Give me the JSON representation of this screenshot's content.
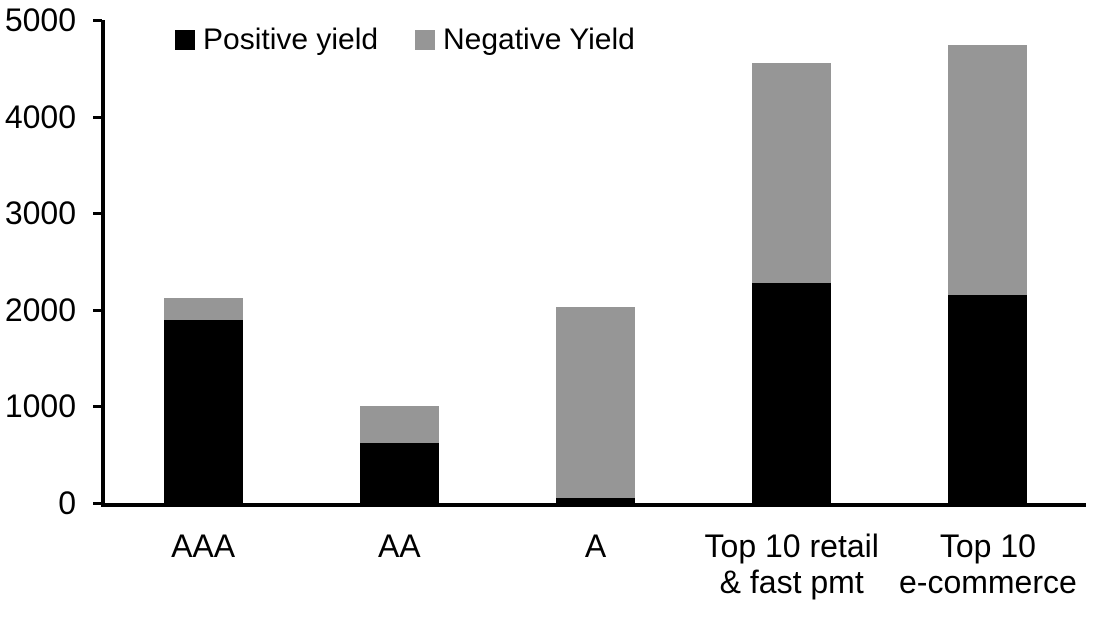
{
  "chart_data": {
    "type": "bar",
    "stacked": true,
    "title": "",
    "xlabel": "",
    "ylabel": "",
    "categories": [
      "AAA",
      "AA",
      "A",
      "Top 10 retail\n& fast pmt",
      "Top 10\ne-commerce"
    ],
    "series": [
      {
        "name": "Positive yield",
        "color": "#000000",
        "values": [
          1890,
          620,
          50,
          2280,
          2150
        ]
      },
      {
        "name": "Negative Yield",
        "color": "#969696",
        "values": [
          230,
          380,
          1980,
          2270,
          2590
        ]
      }
    ],
    "totals": [
      2120,
      1000,
      2030,
      4550,
      4740
    ],
    "ylim": [
      0,
      5000
    ],
    "yticks": [
      0,
      1000,
      2000,
      3000,
      4000,
      5000
    ],
    "grid": false,
    "legend_position": "top-inside",
    "colors": {
      "axis": "#000000",
      "background": "#ffffff"
    }
  }
}
